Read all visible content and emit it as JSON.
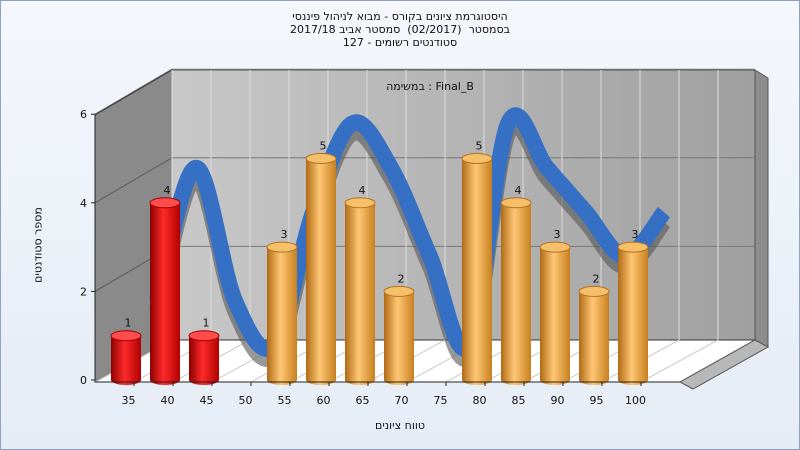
{
  "title_lines": [
    "היסטוגרמת ציונים בקורס - מבוא לניהול פיננסי",
    "בסמסטר  (02/2017)  סמסטר אביב 2017/18",
    "סטודנטים רשומים - 127"
  ],
  "task_label": "במשימה : Final_B",
  "colors": {
    "red": "#e41a1a",
    "orange": "#e8a23a",
    "ribbon": "#3570c5",
    "wall_back": "#a8a8a8",
    "wall_left": "#888888"
  },
  "chart_data": {
    "type": "bar",
    "xlabel": "טווח ציונים",
    "ylabel": "מספר סטודנטים",
    "ylim": [
      0,
      6
    ],
    "yticks": [
      0,
      2,
      4,
      6
    ],
    "categories": [
      "35",
      "40",
      "45",
      "50",
      "55",
      "60",
      "65",
      "70",
      "75",
      "80",
      "85",
      "90",
      "95",
      "100"
    ],
    "values": [
      1,
      4,
      1,
      0,
      3,
      5,
      4,
      2,
      0,
      5,
      4,
      3,
      2,
      3
    ],
    "bar_colors": [
      "red",
      "red",
      "red",
      "none",
      "orange",
      "orange",
      "orange",
      "orange",
      "none",
      "orange",
      "orange",
      "orange",
      "orange",
      "orange"
    ],
    "grid": true,
    "trend_line": true
  }
}
